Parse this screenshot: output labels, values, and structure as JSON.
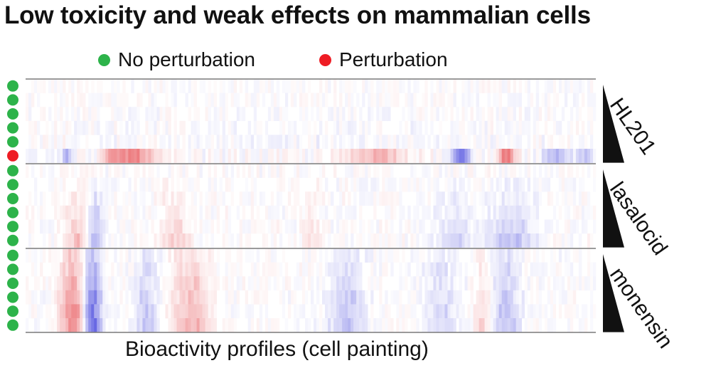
{
  "title": "Low toxicity and weak effects on mammalian cells",
  "legend": {
    "no_perturbation": {
      "label": "No perturbation",
      "color": "#2db34a"
    },
    "perturbation": {
      "label": "Perturbation",
      "color": "#ee1c24"
    }
  },
  "xlabel": "Bioactivity profiles (cell painting)",
  "chart_data": {
    "type": "heatmap",
    "title": "Low toxicity and weak effects on mammalian cells",
    "xlabel": "Bioactivity profiles (cell painting)",
    "colormap": {
      "negative": "#2c2cd8",
      "zero": "#ffffff",
      "positive": "#e0242a"
    },
    "legend": [
      {
        "name": "No perturbation",
        "color": "#2db34a"
      },
      {
        "name": "Perturbation",
        "color": "#ee1c24"
      }
    ],
    "groups": [
      {
        "compound": "HL201",
        "concentration_indicator": "increasing",
        "rows": [
          {
            "perturbation": false
          },
          {
            "perturbation": false
          },
          {
            "perturbation": false
          },
          {
            "perturbation": false
          },
          {
            "perturbation": false
          },
          {
            "perturbation": true
          }
        ]
      },
      {
        "compound": "lasalocid",
        "concentration_indicator": "increasing",
        "rows": [
          {
            "perturbation": false
          },
          {
            "perturbation": false
          },
          {
            "perturbation": false
          },
          {
            "perturbation": false
          },
          {
            "perturbation": false
          },
          {
            "perturbation": false
          }
        ]
      },
      {
        "compound": "monensin",
        "concentration_indicator": "increasing",
        "rows": [
          {
            "perturbation": false
          },
          {
            "perturbation": false
          },
          {
            "perturbation": false
          },
          {
            "perturbation": false
          },
          {
            "perturbation": false
          },
          {
            "perturbation": false
          }
        ]
      }
    ]
  }
}
